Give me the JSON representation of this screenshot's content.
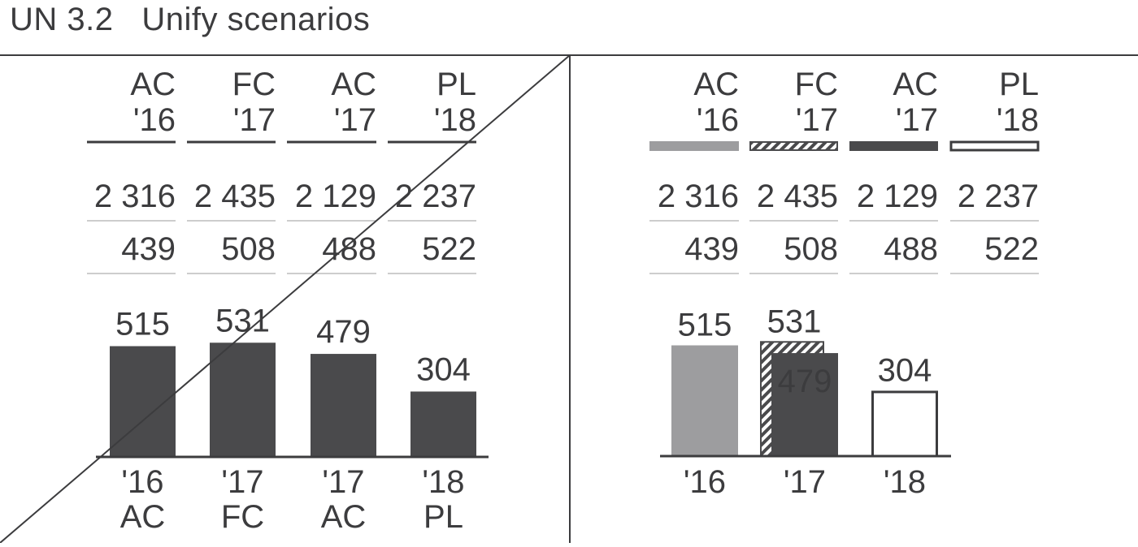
{
  "title": "UN 3.2   Unify scenarios",
  "colors": {
    "ink": "#3c3c3e",
    "ac": "#4a4a4c",
    "pl_hist": "#9d9d9f",
    "rule": "#9b9b9b",
    "white": "#ffffff"
  },
  "chart_data": [
    {
      "panel": "left",
      "type": "table",
      "columns": [
        {
          "scenario": "AC",
          "year": "'16"
        },
        {
          "scenario": "FC",
          "year": "'17"
        },
        {
          "scenario": "AC",
          "year": "'17"
        },
        {
          "scenario": "PL",
          "year": "'18"
        }
      ],
      "rows": [
        [
          "2 316",
          "2 435",
          "2 129",
          "2 237"
        ],
        [
          "439",
          "508",
          "488",
          "522"
        ]
      ]
    },
    {
      "panel": "left",
      "type": "bar",
      "categories": [
        "'16",
        "'17",
        "'17",
        "'18"
      ],
      "scenarios": [
        "AC",
        "FC",
        "AC",
        "PL"
      ],
      "values": [
        515,
        531,
        479,
        304
      ],
      "bar_color": "#4a4a4c",
      "crossed_out": true
    },
    {
      "panel": "right",
      "type": "table",
      "columns": [
        {
          "scenario": "AC",
          "year": "'16",
          "style": "previous-year"
        },
        {
          "scenario": "FC",
          "year": "'17",
          "style": "forecast"
        },
        {
          "scenario": "AC",
          "year": "'17",
          "style": "actual"
        },
        {
          "scenario": "PL",
          "year": "'18",
          "style": "plan"
        }
      ],
      "rows": [
        [
          "2 316",
          "2 435",
          "2 129",
          "2 237"
        ],
        [
          "439",
          "508",
          "488",
          "522"
        ]
      ]
    },
    {
      "panel": "right",
      "type": "bar",
      "categories": [
        "'16",
        "'17",
        "'18"
      ],
      "series": [
        {
          "values": [
            515,
            null,
            null
          ],
          "style": "previous-year"
        },
        {
          "values": [
            null,
            531,
            null
          ],
          "style": "forecast"
        },
        {
          "values": [
            null,
            479,
            null
          ],
          "style": "actual"
        },
        {
          "values": [
            null,
            null,
            304
          ],
          "style": "plan"
        }
      ],
      "labels": [
        "515",
        "531",
        "479",
        "304"
      ]
    }
  ]
}
